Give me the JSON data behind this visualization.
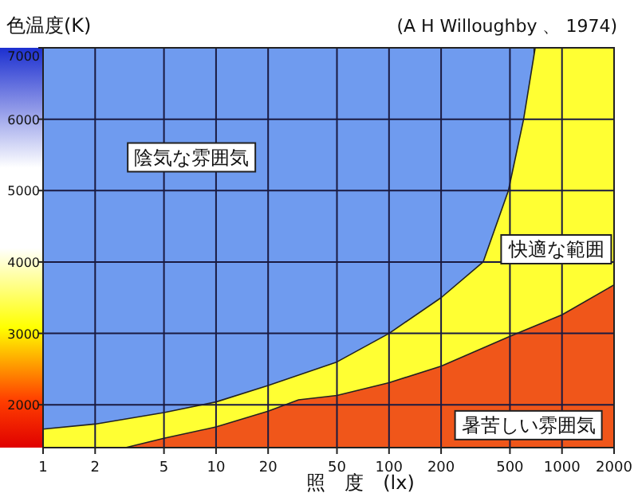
{
  "chart_data": {
    "type": "area",
    "xlabel": "照　度　(lx)",
    "ylabel": "色温度(K)",
    "annotations": [
      "(A H Willoughby 、 1974)",
      "陰気な雰囲気",
      "快適な範囲",
      "暑苦しい雰囲気"
    ],
    "series": [
      {
        "color": "#6f9bef",
        "x": [
          1,
          690
        ],
        "values": [
          7000,
          7000
        ]
      },
      {
        "color": "#ffff33",
        "x": [
          1,
          2,
          5,
          10,
          20,
          50,
          100,
          200,
          350,
          490,
          600,
          700,
          2000
        ],
        "values": [
          1660,
          1730,
          1890,
          2040,
          2270,
          2600,
          3000,
          3500,
          4000,
          5000,
          6000,
          7000,
          7000
        ]
      },
      {
        "color": "#f0561a",
        "x": [
          3,
          5,
          10,
          20,
          30,
          50,
          100,
          200,
          500,
          1000,
          2000
        ],
        "values": [
          1400,
          1530,
          1690,
          1910,
          2070,
          2130,
          2310,
          2540,
          2960,
          3260,
          3680
        ]
      }
    ],
    "log": "x",
    "xlim": [
      1,
      2000
    ],
    "ylim": [
      1400,
      7000
    ],
    "xticks": [
      1,
      2,
      5,
      10,
      20,
      50,
      100,
      200,
      500,
      1000,
      2000
    ],
    "yticks": [
      2000,
      3000,
      4000,
      5000,
      6000,
      7000
    ],
    "grid": true
  }
}
